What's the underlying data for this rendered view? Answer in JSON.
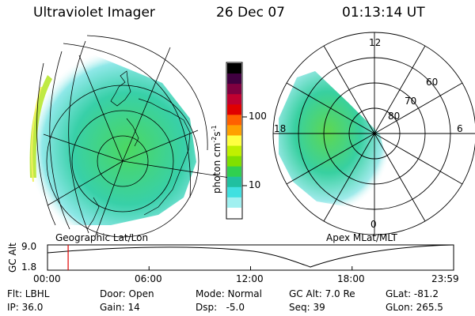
{
  "header": {
    "instrument": "Ultraviolet Imager",
    "date": "26 Dec 07",
    "time": "01:13:14 UT"
  },
  "left_panel": {
    "label": "Geographic Lat/Lon"
  },
  "right_panel": {
    "label": "Apex MLat/MLT",
    "mlt_labels": {
      "top": "12",
      "left": "18",
      "right": "6",
      "bottom": "0"
    },
    "lat_labels": [
      "60",
      "70",
      "80"
    ]
  },
  "colorbar": {
    "unit_label": "photon cm",
    "unit_sup1": "-2",
    "unit_mid": "s",
    "unit_sup2": "-1",
    "ticks": [
      {
        "label": "100",
        "value": 100
      },
      {
        "label": "10",
        "value": 10
      }
    ],
    "colors": [
      "#000000",
      "#400040",
      "#800040",
      "#c00030",
      "#e00000",
      "#ff6000",
      "#ffa000",
      "#ffff40",
      "#c0f000",
      "#80e000",
      "#30d050",
      "#20c0a0",
      "#40e0e0",
      "#a0f0f0",
      "#ffffff"
    ]
  },
  "timeline": {
    "ylabel": "GC Alt",
    "y_ticks": [
      "9.0",
      "1.8"
    ],
    "x_ticks": [
      "00:00",
      "06:00",
      "12:00",
      "18:00",
      "23:59"
    ],
    "current_time_hours": 1.22
  },
  "footer": {
    "flt": "Flt: LBHL",
    "ip": "IP: 36.0",
    "door": "Door: Open",
    "gain": "Gain: 14",
    "mode": "Mode: Normal",
    "dsp": "Dsp:   -5.0",
    "gcalt": "GC Alt: 7.0 Re",
    "seq": "Seq: 39",
    "glat": "GLat: -81.2",
    "glon": "GLon: 265.5"
  }
}
